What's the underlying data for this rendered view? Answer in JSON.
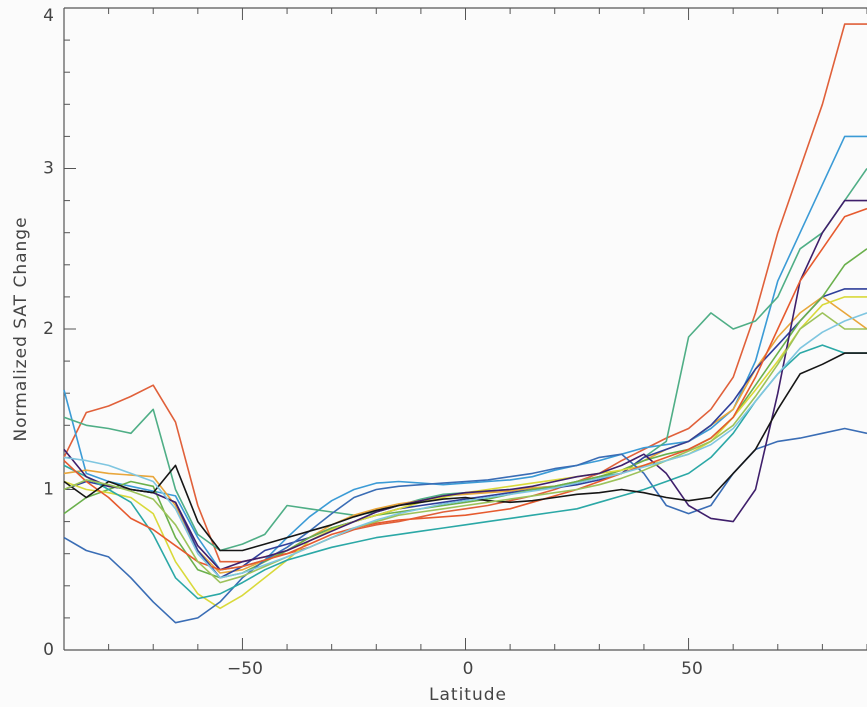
{
  "chart_data": {
    "type": "line",
    "title": "",
    "xlabel": "Latitude",
    "ylabel": "Normalized SAT Change",
    "xlim": [
      -90,
      90
    ],
    "ylim": [
      0,
      4
    ],
    "xticks": [
      -50,
      0,
      50
    ],
    "xtick_labels": [
      "−50",
      "0",
      "50"
    ],
    "yticks": [
      0,
      1,
      2,
      3,
      4
    ],
    "ytick_labels": [
      "0",
      "1",
      "2",
      "3",
      "4"
    ],
    "grid": false,
    "legend": "none",
    "x": [
      -90,
      -85,
      -80,
      -75,
      -70,
      -65,
      -60,
      -55,
      -50,
      -45,
      -40,
      -35,
      -30,
      -25,
      -20,
      -15,
      -10,
      -5,
      0,
      5,
      10,
      15,
      20,
      25,
      30,
      35,
      40,
      45,
      50,
      55,
      60,
      65,
      70,
      75,
      80,
      85,
      90
    ],
    "series": [
      {
        "color": "#e0603a",
        "values": [
          1.2,
          1.48,
          1.52,
          1.58,
          1.65,
          1.42,
          0.9,
          0.55,
          0.55,
          0.58,
          0.6,
          0.64,
          0.7,
          0.75,
          0.78,
          0.8,
          0.83,
          0.86,
          0.88,
          0.9,
          0.93,
          0.96,
          1.0,
          1.05,
          1.1,
          1.18,
          1.25,
          1.32,
          1.38,
          1.5,
          1.7,
          2.1,
          2.6,
          3.0,
          3.4,
          3.9,
          3.9
        ]
      },
      {
        "color": "#3b9bd6",
        "values": [
          1.62,
          1.1,
          1.05,
          1.02,
          0.99,
          0.96,
          0.7,
          0.5,
          0.52,
          0.56,
          0.7,
          0.83,
          0.93,
          1.0,
          1.04,
          1.05,
          1.04,
          1.03,
          1.04,
          1.05,
          1.06,
          1.08,
          1.12,
          1.15,
          1.18,
          1.22,
          1.26,
          1.28,
          1.3,
          1.38,
          1.5,
          1.8,
          2.3,
          2.6,
          2.9,
          3.2,
          3.2
        ]
      },
      {
        "color": "#4fae86",
        "values": [
          1.45,
          1.4,
          1.38,
          1.35,
          1.5,
          1.0,
          0.72,
          0.62,
          0.66,
          0.72,
          0.9,
          0.88,
          0.86,
          0.84,
          0.86,
          0.9,
          0.94,
          0.97,
          0.98,
          0.99,
          1.0,
          1.01,
          1.02,
          1.05,
          1.08,
          1.1,
          1.2,
          1.3,
          1.95,
          2.1,
          2.0,
          2.05,
          2.2,
          2.5,
          2.6,
          2.8,
          3.0
        ]
      },
      {
        "color": "#e8a63b",
        "values": [
          1.1,
          1.12,
          1.1,
          1.09,
          1.08,
          0.9,
          0.62,
          0.48,
          0.5,
          0.56,
          0.62,
          0.7,
          0.78,
          0.84,
          0.88,
          0.91,
          0.93,
          0.96,
          0.97,
          0.98,
          0.99,
          1.01,
          1.02,
          1.05,
          1.08,
          1.12,
          1.18,
          1.25,
          1.3,
          1.4,
          1.5,
          1.75,
          1.95,
          2.1,
          2.2,
          2.1,
          2.0
        ]
      },
      {
        "color": "#2f3f9a",
        "values": [
          1.0,
          1.05,
          1.02,
          1.0,
          0.98,
          0.92,
          0.62,
          0.45,
          0.52,
          0.62,
          0.66,
          0.7,
          0.76,
          0.8,
          0.84,
          0.88,
          0.9,
          0.92,
          0.94,
          0.96,
          0.98,
          1.0,
          1.01,
          1.03,
          1.06,
          1.1,
          1.2,
          1.25,
          1.3,
          1.4,
          1.55,
          1.75,
          1.9,
          2.05,
          2.2,
          2.25,
          2.25
        ]
      },
      {
        "color": "#6ab04c",
        "values": [
          0.85,
          0.95,
          1.0,
          1.05,
          1.02,
          0.7,
          0.5,
          0.45,
          0.48,
          0.55,
          0.62,
          0.7,
          0.76,
          0.8,
          0.84,
          0.86,
          0.88,
          0.9,
          0.92,
          0.94,
          0.97,
          1.0,
          1.02,
          1.05,
          1.08,
          1.12,
          1.18,
          1.22,
          1.25,
          1.32,
          1.45,
          1.65,
          1.85,
          2.05,
          2.2,
          2.4,
          2.5
        ]
      },
      {
        "color": "#d9d93a",
        "values": [
          1.05,
          1.0,
          0.98,
          0.95,
          0.85,
          0.55,
          0.35,
          0.26,
          0.34,
          0.45,
          0.56,
          0.68,
          0.75,
          0.8,
          0.84,
          0.88,
          0.92,
          0.95,
          0.98,
          1.0,
          1.02,
          1.04,
          1.06,
          1.08,
          1.1,
          1.12,
          1.15,
          1.18,
          1.22,
          1.3,
          1.45,
          1.62,
          1.8,
          2.0,
          2.15,
          2.2,
          2.2
        ]
      },
      {
        "color": "#3a6db5",
        "values": [
          0.7,
          0.62,
          0.58,
          0.45,
          0.3,
          0.17,
          0.2,
          0.3,
          0.45,
          0.56,
          0.64,
          0.74,
          0.85,
          0.95,
          1.0,
          1.02,
          1.03,
          1.04,
          1.05,
          1.06,
          1.08,
          1.1,
          1.13,
          1.15,
          1.2,
          1.22,
          1.1,
          0.9,
          0.85,
          0.9,
          1.1,
          1.25,
          1.3,
          1.32,
          1.35,
          1.38,
          1.35
        ]
      },
      {
        "color": "#2ba8a6",
        "values": [
          1.15,
          1.08,
          1.0,
          0.92,
          0.72,
          0.45,
          0.32,
          0.35,
          0.42,
          0.5,
          0.56,
          0.6,
          0.64,
          0.67,
          0.7,
          0.72,
          0.74,
          0.76,
          0.78,
          0.8,
          0.82,
          0.84,
          0.86,
          0.88,
          0.92,
          0.96,
          1.0,
          1.05,
          1.1,
          1.2,
          1.35,
          1.55,
          1.72,
          1.85,
          1.9,
          1.85,
          1.85
        ]
      },
      {
        "color": "#3f1f6b",
        "values": [
          1.25,
          1.08,
          1.02,
          1.0,
          0.98,
          0.92,
          0.65,
          0.5,
          0.55,
          0.58,
          0.62,
          0.68,
          0.74,
          0.8,
          0.86,
          0.9,
          0.93,
          0.96,
          0.98,
          0.99,
          1.0,
          1.02,
          1.05,
          1.08,
          1.1,
          1.15,
          1.22,
          1.1,
          0.9,
          0.82,
          0.8,
          1.0,
          1.6,
          2.3,
          2.6,
          2.8,
          2.8
        ]
      },
      {
        "color": "#e65a2e",
        "values": [
          1.18,
          1.05,
          0.95,
          0.82,
          0.75,
          0.65,
          0.55,
          0.5,
          0.52,
          0.56,
          0.6,
          0.66,
          0.72,
          0.76,
          0.79,
          0.81,
          0.82,
          0.83,
          0.84,
          0.86,
          0.88,
          0.92,
          0.96,
          1.0,
          1.05,
          1.1,
          1.15,
          1.2,
          1.25,
          1.32,
          1.45,
          1.7,
          2.0,
          2.3,
          2.5,
          2.7,
          2.75
        ]
      },
      {
        "color": "#161616",
        "values": [
          1.05,
          0.95,
          1.05,
          1.0,
          0.98,
          1.15,
          0.8,
          0.62,
          0.62,
          0.66,
          0.7,
          0.74,
          0.78,
          0.83,
          0.87,
          0.9,
          0.92,
          0.94,
          0.95,
          0.93,
          0.92,
          0.93,
          0.95,
          0.97,
          0.98,
          1.0,
          0.98,
          0.95,
          0.93,
          0.95,
          1.1,
          1.25,
          1.5,
          1.72,
          1.78,
          1.85,
          1.85
        ]
      },
      {
        "color": "#9cc25a",
        "values": [
          1.0,
          1.06,
          1.03,
          0.99,
          0.94,
          0.78,
          0.55,
          0.42,
          0.46,
          0.52,
          0.58,
          0.64,
          0.7,
          0.76,
          0.8,
          0.84,
          0.86,
          0.88,
          0.9,
          0.92,
          0.94,
          0.96,
          0.98,
          1.0,
          1.03,
          1.07,
          1.12,
          1.18,
          1.24,
          1.3,
          1.4,
          1.58,
          1.78,
          2.0,
          2.1,
          2.0,
          2.0
        ]
      },
      {
        "color": "#7fc6e0",
        "values": [
          1.2,
          1.18,
          1.15,
          1.1,
          1.05,
          0.88,
          0.6,
          0.45,
          0.48,
          0.53,
          0.58,
          0.64,
          0.7,
          0.76,
          0.81,
          0.85,
          0.88,
          0.91,
          0.93,
          0.95,
          0.97,
          0.99,
          1.01,
          1.04,
          1.07,
          1.1,
          1.14,
          1.18,
          1.22,
          1.28,
          1.38,
          1.55,
          1.72,
          1.88,
          1.98,
          2.05,
          2.1
        ]
      }
    ]
  }
}
